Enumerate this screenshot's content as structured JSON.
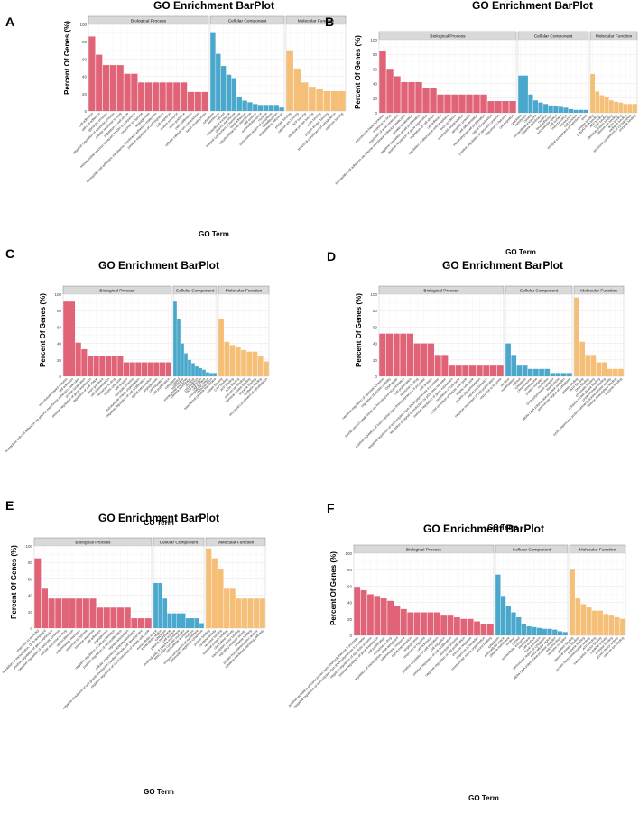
{
  "colors": {
    "biological_process": "#e06377",
    "cellular_component": "#4aa8cc",
    "molecular_function": "#f5bf78",
    "panel_background": "#ffffff",
    "grid": "#e6e6e6",
    "strip_background": "#d9d9d9",
    "strip_border": "#8c8c8c"
  },
  "chart_data": [
    {
      "panel": "A",
      "type": "bar",
      "title": "GO Enrichment BarPlot",
      "xlabel": "GO Term",
      "ylabel": "Percent Of Genes (%)",
      "ylim": [
        0,
        100
      ],
      "y_ticks": [
        0,
        20,
        40,
        60,
        80,
        100
      ],
      "grid": true,
      "facets": [
        {
          "name": "Biological Process",
          "categories": [
            "cell adhesion",
            "cell-cell adhesion",
            "glycolytic process",
            "negative regulation of apoptotic process",
            "cellular response to drug",
            "regulation of cell shape",
            "mitochondrial electron transport, NADH to ubiquinone",
            "response to hypoxia",
            "angiogenesis",
            "homophilic cell adhesion via plasma membrane adhesion molecules",
            "positive regulation of cell migration",
            "cell migration",
            "protein transport",
            "axon guidance",
            "cell proliferation",
            "cellular calcium ion homeostasis",
            "heart development"
          ],
          "values": [
            86,
            65,
            53,
            53,
            53,
            43,
            43,
            33,
            33,
            33,
            33,
            33,
            33,
            33,
            22,
            22,
            22
          ]
        },
        {
          "name": "Cellular Component",
          "categories": [
            "cytoplasm",
            "membrane",
            "cytosol",
            "extracellular exosome",
            "plasma membrane",
            "integral component of membrane",
            "focal adhesion",
            "mitochondrial inner membrane",
            "cell surface",
            "extracellular space",
            "nucleus",
            "perinuclear region of cytoplasm",
            "lamellipodium",
            "endoplasmic reticulum"
          ],
          "values": [
            90,
            66,
            52,
            42,
            38,
            16,
            12,
            10,
            8,
            7,
            7,
            7,
            7,
            4
          ]
        },
        {
          "name": "Molecular Function",
          "categories": [
            "protein binding",
            "calcium ion binding",
            "ATP binding",
            "identical protein binding",
            "actin binding",
            "protein kinase binding",
            "structural constituent of cytoskeleton",
            "cadherin binding"
          ],
          "values": [
            70,
            49,
            33,
            28,
            25,
            23,
            23,
            23
          ]
        }
      ]
    },
    {
      "panel": "B",
      "type": "bar",
      "title": "GO Enrichment BarPlot",
      "xlabel": "GO Term",
      "ylabel": "Percent Of Genes (%)",
      "ylim": [
        0,
        100
      ],
      "y_ticks": [
        0,
        20,
        40,
        60,
        80,
        100
      ],
      "grid": true,
      "facets": [
        {
          "name": "Biological Process",
          "categories": [
            "microtubule-based process",
            "response to drug",
            "regulation of axon extension",
            "homophilic cell adhesion via plasma membrane adhesion molecules",
            "protein localization",
            "negative regulation of cell proliferation",
            "positive regulation of gene expression",
            "regulation of cell shape",
            "cell adhesion",
            "regulation of alternative mRNA splicing",
            "axon guidance",
            "neutrophil degranulation",
            "apoptotic process",
            "cell differentiation",
            "mesenchymal cell proliferation",
            "signal transduction",
            "positive regulation of apoptotic process",
            "response to hypoxia",
            "cell migration"
          ],
          "values": [
            85,
            59,
            50,
            42,
            42,
            42,
            34,
            34,
            25,
            25,
            25,
            25,
            25,
            25,
            25,
            16,
            16,
            16,
            16
          ]
        },
        {
          "name": "Cellular Component",
          "categories": [
            "cytoplasm",
            "membrane",
            "cytosol",
            "extracellular exosome",
            "plasma membrane",
            "nucleus",
            "focal adhesion",
            "extracellular space",
            "cell surface",
            "mitochondrion",
            "microtubule",
            "cell junction",
            "integral component of membrane",
            "axon"
          ],
          "values": [
            51,
            51,
            25,
            17,
            14,
            12,
            10,
            9,
            8,
            7,
            5,
            4,
            4,
            4
          ]
        },
        {
          "name": "Molecular Function",
          "categories": [
            "protein binding",
            "poly(A) RNA binding",
            "ATP binding",
            "GTP binding",
            "identical protein binding",
            "calcium ion binding",
            "actin binding",
            "cadherin binding",
            "structural constituent of cytoskeleton",
            "enzyme binding"
          ],
          "values": [
            53,
            29,
            24,
            21,
            17,
            15,
            14,
            12,
            12,
            12
          ]
        }
      ]
    },
    {
      "panel": "C",
      "type": "bar",
      "title": "GO Enrichment BarPlot",
      "xlabel": "GO Term",
      "ylabel": "Percent Of Genes (%)",
      "ylim": [
        0,
        100
      ],
      "y_ticks": [
        0,
        20,
        40,
        60,
        80,
        100
      ],
      "grid": true,
      "facets": [
        {
          "name": "Biological Process",
          "categories": [
            "microtubule-based process",
            "cell adhesion",
            "homophilic cell-cell adhesion via plasma membrane adhesion molecules",
            "protein localization",
            "positive regulation of gene expression",
            "regulation of cell shape",
            "axon guidance",
            "cell differentiation",
            "response to drug",
            "mitotic cell cycle",
            "cell division",
            "apoptotic process",
            "extracellular matrix organization",
            "negative regulation of cell proliferation",
            "signal transduction",
            "angiogenesis",
            "cell migration",
            "cell proliferation"
          ],
          "values": [
            91,
            91,
            41,
            33,
            25,
            25,
            25,
            25,
            25,
            25,
            17,
            17,
            17,
            17,
            17,
            17,
            17,
            17
          ]
        },
        {
          "name": "Cellular Component",
          "categories": [
            "cytoplasm",
            "cytosol",
            "membrane",
            "extracellular exosome",
            "plasma membrane",
            "nucleus",
            "cytoskeleton",
            "focal adhesion",
            "cell surface",
            "extracellular space",
            "mitochondrion",
            "basolateral plasma membrane"
          ],
          "values": [
            91,
            70,
            40,
            28,
            20,
            16,
            12,
            10,
            8,
            5,
            4,
            4
          ]
        },
        {
          "name": "Molecular Function",
          "categories": [
            "protein binding",
            "GTP binding",
            "ATP binding",
            "actin binding",
            "calcium ion binding",
            "identical protein binding",
            "enzyme binding",
            "cadherin binding",
            "structural constituent of cytoskeleton"
          ],
          "values": [
            70,
            42,
            38,
            36,
            32,
            30,
            30,
            25,
            18
          ]
        }
      ]
    },
    {
      "panel": "D",
      "type": "bar",
      "title": "GO Enrichment BarPlot",
      "xlabel": "GO Term",
      "ylabel": "Percent Of Genes (%)",
      "ylim": [
        0,
        100
      ],
      "y_ticks": [
        0,
        20,
        40,
        60,
        80,
        100
      ],
      "grid": true,
      "facets": [
        {
          "name": "Biological Process",
          "categories": [
            "negative regulation of apoptotic process",
            "regulation of protein stability",
            "DNA repair",
            "double-strand break repair via homologous recombination",
            "cell proliferation",
            "response to drug",
            "positive regulation of transcription from RNA polymerase II promoter",
            "cell division",
            "negative regulation of transcription from RNA polymerase II promoter",
            "regulation of signal transduction by p53 class mediator",
            "positive regulation of gene expression",
            "regulation of cell cycle",
            "G2/M transition of mitotic cell cycle",
            "mitotic cell cycle",
            "protein phosphorylation",
            "signal transduction",
            "negative regulation of cell proliferation",
            "response to hypoxia"
          ],
          "values": [
            52,
            52,
            52,
            52,
            52,
            40,
            40,
            40,
            26,
            26,
            13,
            13,
            13,
            13,
            13,
            13,
            13,
            13
          ]
        },
        {
          "name": "Cellular Component",
          "categories": [
            "nucleus",
            "nucleoplasm",
            "cytosol",
            "cytoplasm",
            "chromosome",
            "centrosome",
            "protein complex",
            "nucleolus",
            "DNA polymerase complex",
            "kinetochore",
            "alpha DNA polymerase:primase complex",
            "perinuclear region of cytoplasm"
          ],
          "values": [
            40,
            26,
            13,
            13,
            9,
            9,
            9,
            9,
            4,
            4,
            4,
            4
          ]
        },
        {
          "name": "Molecular Function",
          "categories": [
            "protein binding",
            "ATP binding",
            "DNA binding",
            "chromatin binding",
            "ubiquitin protein ligase binding",
            "protein kinase binding",
            "cyclin-dependent protein serine/threonine kinase activity",
            "histone deacetylase binding",
            "enzyme binding"
          ],
          "values": [
            96,
            42,
            26,
            26,
            17,
            17,
            9,
            9,
            9
          ]
        }
      ]
    },
    {
      "panel": "E",
      "type": "bar",
      "title": "GO Enrichment BarPlot",
      "xlabel": "GO Term",
      "ylabel": "Percent Of Genes (%)",
      "ylim": [
        0,
        100
      ],
      "y_ticks": [
        0,
        20,
        40,
        60,
        80,
        100
      ],
      "grid": true,
      "facets": [
        {
          "name": "Biological Process",
          "categories": [
            "response to estradiol",
            "regulation of transcription, DNA-templated",
            "positive regulation of gene expression",
            "negative regulation of apoptotic process",
            "cellular response to drug",
            "cell proliferation",
            "inflammatory response",
            "response to hypoxia",
            "immune response",
            "cell adhesion",
            "angiogenesis",
            "negative regulation of cell proliferation",
            "positive regulation of cell proliferation",
            "signal transduction",
            "cellular response to lipopolysaccharide",
            "negative regulation of cell growth involved in cardiac muscle cell development",
            "negative regulation of G1/S transition of mitotic cell cycle"
          ],
          "values": [
            85,
            48,
            36,
            36,
            36,
            36,
            36,
            36,
            36,
            25,
            25,
            25,
            25,
            25,
            12,
            12,
            12
          ]
        },
        {
          "name": "Cellular Component",
          "categories": [
            "extracellular space",
            "extracellular region",
            "cytoplasm",
            "plasma membrane",
            "cell surface",
            "external side of plasma membrane",
            "MHC class I protein complex",
            "extracellular exosome",
            "nucleus",
            "integral component of membrane",
            "perinuclear region of cytoplasm"
          ],
          "values": [
            55,
            55,
            36,
            18,
            18,
            18,
            18,
            12,
            12,
            12,
            6
          ]
        },
        {
          "name": "Molecular Function",
          "categories": [
            "protein binding",
            "cytokine activity",
            "receptor binding",
            "identical protein binding",
            "chemokine activity",
            "transcription factor binding",
            "signaling receptor activity",
            "enzyme binding",
            "protein homodimerization activity",
            "cytokine-mediated signaling pathway"
          ],
          "values": [
            97,
            85,
            72,
            48,
            48,
            36,
            36,
            36,
            36,
            36
          ]
        }
      ]
    },
    {
      "panel": "F",
      "type": "bar",
      "title": "GO Enrichment BarPlot",
      "xlabel": "GO Term",
      "ylabel": "Percent Of Genes (%)",
      "ylim": [
        0,
        100
      ],
      "y_ticks": [
        0,
        20,
        40,
        60,
        80,
        100
      ],
      "grid": true,
      "facets": [
        {
          "name": "Biological Process",
          "categories": [
            "positive regulation of transcription from RNA polymerase II promoter",
            "negative regulation of transcription from RNA polymerase II promoter",
            "negative regulation of apoptotic process",
            "positive regulation of gene expression",
            "cell proliferation",
            "response to drug",
            "regulation of transcription, DNA-templated",
            "inflammatory response",
            "signal transduction",
            "angiogenesis",
            "response to hypoxia",
            "cell adhesion",
            "positive regulation of cell migration",
            "cell migration",
            "positive regulation of cell proliferation",
            "apoptotic process",
            "negative regulation of cell proliferation",
            "immune response",
            "response to estradiol",
            "extracellular matrix organization",
            "wound healing"
          ],
          "values": [
            58,
            55,
            50,
            48,
            45,
            42,
            36,
            32,
            28,
            28,
            28,
            28,
            28,
            24,
            24,
            22,
            20,
            20,
            17,
            14,
            14
          ]
        },
        {
          "name": "Cellular Component",
          "categories": [
            "cytoplasm",
            "extracellular space",
            "plasma membrane",
            "nucleus",
            "cytosol",
            "extracellular exosome",
            "membrane",
            "cell surface",
            "focal adhesion",
            "perinuclear region of cytoplasm",
            "extracellular region",
            "alpha DNA polymerase:primase complex",
            "mitochondrion",
            "receptor complex"
          ],
          "values": [
            74,
            48,
            36,
            28,
            22,
            14,
            11,
            10,
            9,
            8,
            8,
            7,
            5,
            4
          ]
        },
        {
          "name": "Molecular Function",
          "categories": [
            "protein binding",
            "identical protein binding",
            "enzyme binding",
            "protein homodimerization activity",
            "ATP binding",
            "transcription factor binding",
            "cytokine activity",
            "receptor binding",
            "growth factor activity",
            "calcium ion binding"
          ],
          "values": [
            80,
            45,
            38,
            34,
            30,
            30,
            26,
            24,
            22,
            20
          ]
        }
      ]
    }
  ]
}
